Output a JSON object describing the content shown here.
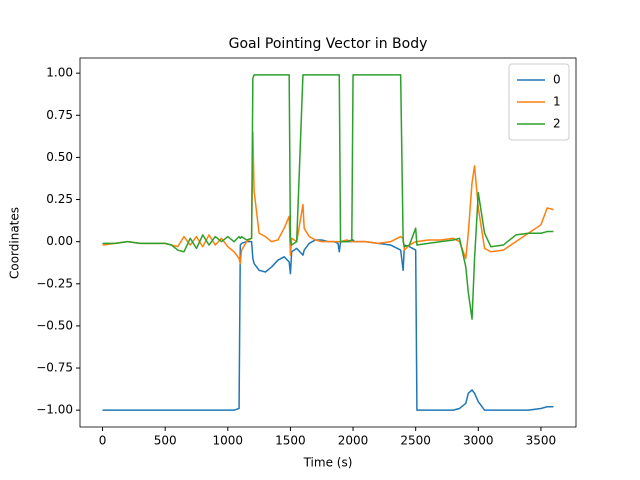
{
  "chart_data": {
    "type": "line",
    "title": "Goal Pointing Vector in Body",
    "xlabel": "Time (s)",
    "ylabel": "Coordinates",
    "x": [
      0,
      100,
      200,
      300,
      400,
      500,
      550,
      600,
      650,
      700,
      750,
      800,
      850,
      900,
      950,
      1000,
      1050,
      1090,
      1100,
      1110,
      1150,
      1190,
      1200,
      1210,
      1250,
      1300,
      1350,
      1400,
      1450,
      1490,
      1500,
      1510,
      1550,
      1600,
      1610,
      1650,
      1700,
      1750,
      1800,
      1850,
      1880,
      1890,
      1900,
      1950,
      1990,
      2000,
      2010,
      2100,
      2200,
      2300,
      2380,
      2400,
      2410,
      2450,
      2500,
      2510,
      2600,
      2700,
      2800,
      2850,
      2900,
      2920,
      2950,
      2970,
      3000,
      3050,
      3100,
      3200,
      3300,
      3400,
      3500,
      3550,
      3600
    ],
    "series": [
      {
        "name": "0",
        "color": "#1f77b4",
        "values": [
          -1,
          -1,
          -1,
          -1,
          -1,
          -1,
          -1,
          -1,
          -1,
          -1,
          -1,
          -1,
          -1,
          -1,
          -1,
          -1,
          -1,
          -0.99,
          -0.02,
          -0.01,
          0,
          0,
          -0.1,
          -0.13,
          -0.17,
          -0.18,
          -0.15,
          -0.11,
          -0.09,
          -0.12,
          -0.19,
          -0.06,
          -0.04,
          -0.08,
          -0.05,
          -0.01,
          0.01,
          0.01,
          0,
          0,
          -0.01,
          -0.06,
          0,
          0,
          0,
          0.01,
          0,
          0,
          -0.01,
          -0.02,
          -0.05,
          -0.17,
          -0.02,
          -0.03,
          -0.05,
          -1,
          -1,
          -1,
          -1,
          -0.99,
          -0.96,
          -0.9,
          -0.88,
          -0.9,
          -0.95,
          -1,
          -1,
          -1,
          -1,
          -1,
          -0.99,
          -0.98,
          -0.98
        ]
      },
      {
        "name": "1",
        "color": "#ff7f0e",
        "values": [
          -0.02,
          -0.01,
          0,
          -0.01,
          -0.01,
          -0.01,
          -0.02,
          -0.03,
          0.03,
          -0.02,
          0.03,
          -0.03,
          0.04,
          -0.02,
          0.02,
          -0.03,
          -0.06,
          -0.1,
          -0.13,
          -0.05,
          0,
          0.02,
          0.65,
          0.3,
          0.05,
          0.03,
          0,
          0.01,
          0.08,
          0.15,
          -0.08,
          0.02,
          0,
          0.22,
          0.08,
          0.03,
          0.01,
          0,
          0,
          0,
          0,
          0,
          0,
          0.01,
          0,
          0,
          0,
          0,
          -0.01,
          0,
          0.03,
          0.02,
          -0.05,
          -0.02,
          0,
          0,
          0.01,
          0.01,
          0.02,
          0,
          -0.1,
          0.05,
          0.35,
          0.45,
          0.2,
          -0.04,
          -0.06,
          -0.05,
          0,
          0.05,
          0.1,
          0.2,
          0.19
        ]
      },
      {
        "name": "2",
        "color": "#2ca02c",
        "values": [
          -0.01,
          -0.01,
          0,
          -0.01,
          -0.01,
          -0.01,
          -0.02,
          -0.05,
          -0.06,
          0.02,
          -0.04,
          0.04,
          -0.02,
          0.03,
          0,
          0.03,
          0,
          0.03,
          0.02,
          0.03,
          0.01,
          0.02,
          0.97,
          0.99,
          0.99,
          0.99,
          0.99,
          0.99,
          0.99,
          0.99,
          0,
          -0.02,
          0,
          0.99,
          0.99,
          0.99,
          0.99,
          0.99,
          0.99,
          0.99,
          0.99,
          0.99,
          0,
          0,
          0.01,
          0.99,
          0.99,
          0.99,
          0.99,
          0.99,
          0.99,
          0,
          -0.03,
          -0.02,
          0.08,
          -0.02,
          -0.01,
          0,
          0.01,
          0.02,
          -0.15,
          -0.3,
          -0.46,
          -0.1,
          0.29,
          0.05,
          -0.03,
          -0.02,
          0.04,
          0.05,
          0.05,
          0.06,
          0.06
        ]
      }
    ],
    "xlim": [
      -180,
      3780
    ],
    "ylim": [
      -1.1,
      1.09
    ],
    "xticks": [
      0,
      500,
      1000,
      1500,
      2000,
      2500,
      3000,
      3500
    ],
    "yticks": [
      {
        "value": -1,
        "label": "−1.00"
      },
      {
        "value": -0.75,
        "label": "−0.75"
      },
      {
        "value": -0.5,
        "label": "−0.50"
      },
      {
        "value": -0.25,
        "label": "−0.25"
      },
      {
        "value": 0,
        "label": "0.00"
      },
      {
        "value": 0.25,
        "label": "0.25"
      },
      {
        "value": 0.5,
        "label": "0.50"
      },
      {
        "value": 0.75,
        "label": "0.75"
      },
      {
        "value": 1,
        "label": "1.00"
      }
    ],
    "legend": "upper right",
    "grid": false
  }
}
